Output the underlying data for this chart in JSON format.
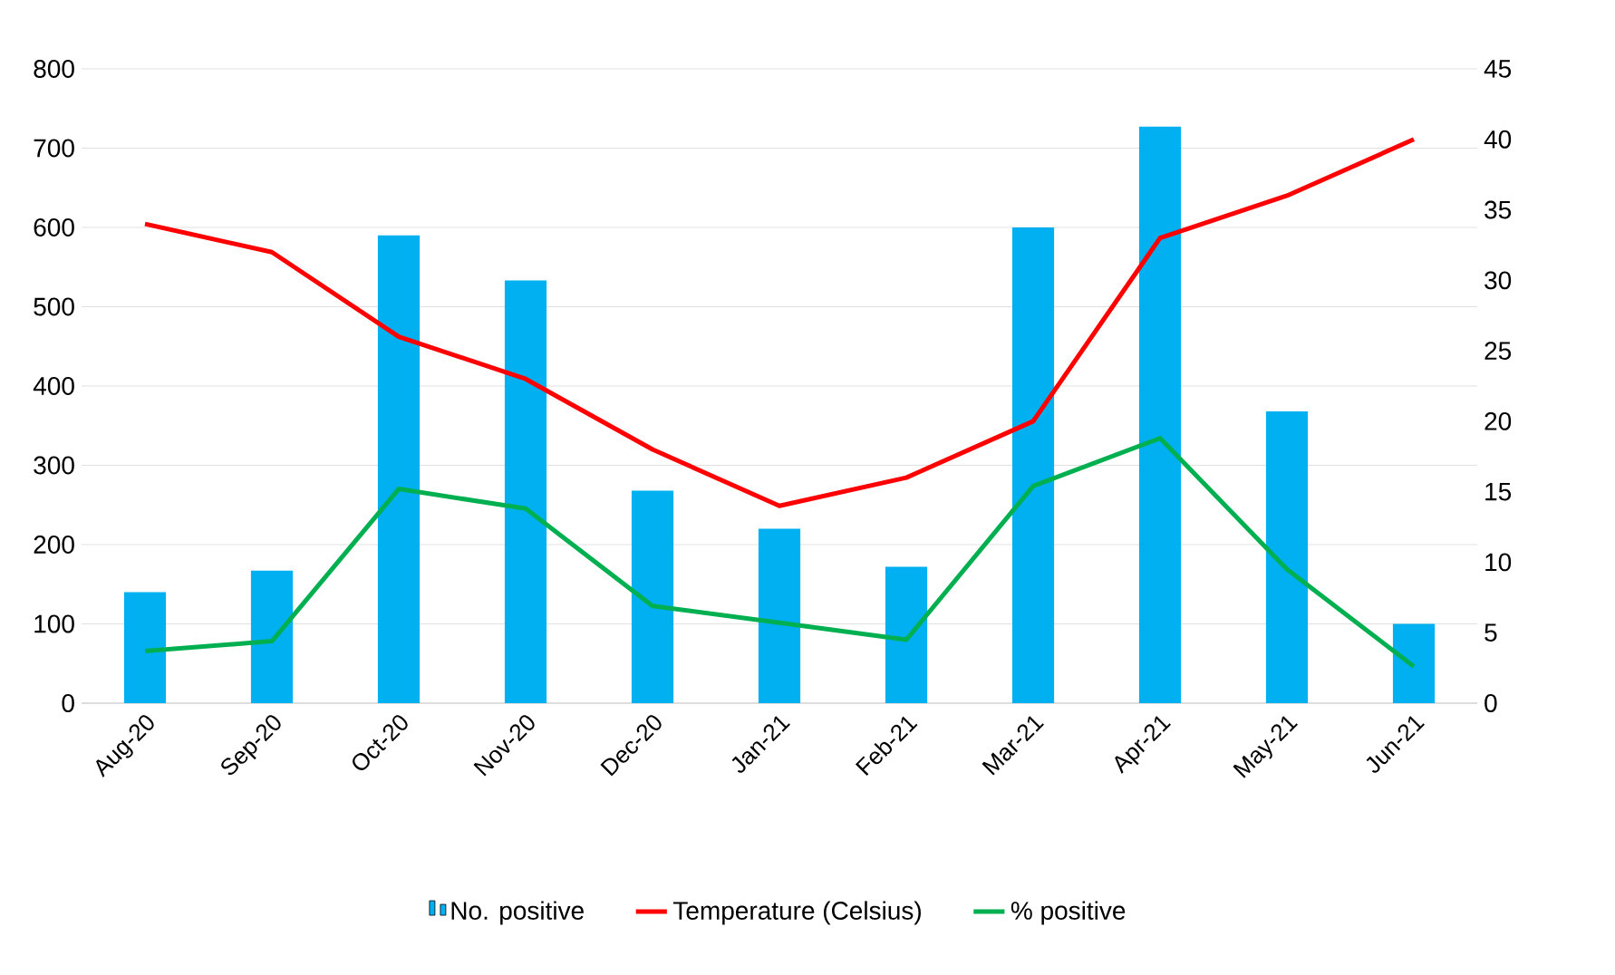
{
  "chart_data": {
    "type": "bar",
    "categories": [
      "Aug-20",
      "Sep-20",
      "Oct-20",
      "Nov-20",
      "Dec-20",
      "Jan-21",
      "Feb-21",
      "Mar-21",
      "Apr-21",
      "May-21",
      "Jun-21"
    ],
    "series": [
      {
        "name": "No. positive",
        "color": "#00b0f0",
        "values": [
          140,
          167,
          590,
          533,
          268,
          220,
          172,
          600,
          727,
          368,
          100
        ]
      },
      {
        "name": "Temperature (Celsius)",
        "type": "line",
        "axis": "y2",
        "color": "#ff0000",
        "values": [
          34,
          32,
          26,
          23,
          18,
          14,
          16,
          20,
          33,
          36,
          40
        ]
      },
      {
        "name": "% positive",
        "type": "line",
        "axis": "y2",
        "color": "#00b050",
        "values": [
          3.7,
          4.4,
          15.2,
          13.8,
          6.9,
          5.7,
          4.5,
          15.4,
          18.8,
          9.5,
          2.6
        ]
      }
    ],
    "ylim": [
      0,
      800
    ],
    "yticks": [
      0,
      100,
      200,
      300,
      400,
      500,
      600,
      700,
      800
    ],
    "y2lim": [
      0,
      45
    ],
    "y2ticks": [
      0,
      5,
      10,
      15,
      20,
      25,
      30,
      35,
      40,
      45
    ],
    "grid": "y",
    "legend": "bottom",
    "marker": "none",
    "line_style": "solid"
  }
}
